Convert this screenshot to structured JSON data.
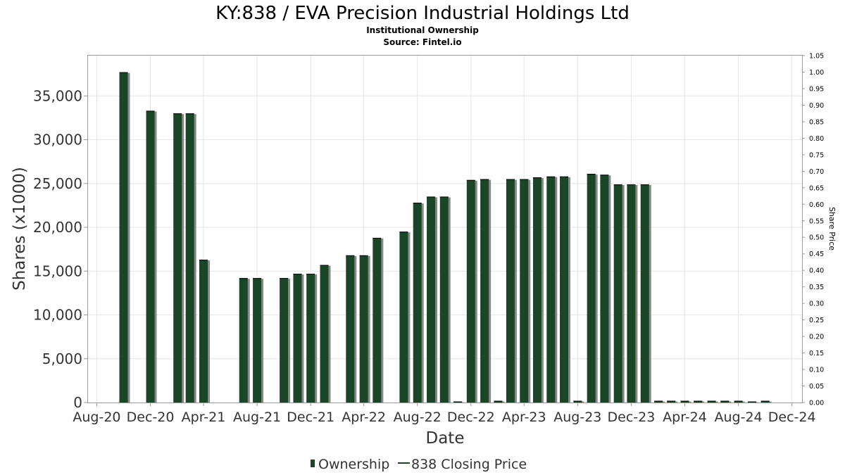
{
  "chart_data": {
    "type": "bar",
    "title": "KY:838 / EVA Precision Industrial Holdings Ltd",
    "subtitle_lines": [
      "Institutional Ownership",
      "Source: Fintel.io"
    ],
    "xlabel": "Date",
    "ylabel": "Shares (x1000)",
    "y2label": "Share Price",
    "ylim": [
      0,
      39600
    ],
    "y2lim": [
      0,
      1.05
    ],
    "yticks": [
      0,
      5000,
      10000,
      15000,
      20000,
      25000,
      30000,
      35000
    ],
    "ytick_labels": [
      "0",
      "5,000",
      "10,000",
      "15,000",
      "20,000",
      "25,000",
      "30,000",
      "35,000"
    ],
    "y2ticks": [
      0.0,
      0.05,
      0.1,
      0.15,
      0.2,
      0.25,
      0.3,
      0.35,
      0.4,
      0.45,
      0.5,
      0.55,
      0.6,
      0.65,
      0.7,
      0.75,
      0.8,
      0.85,
      0.9,
      0.95,
      1.0,
      1.05
    ],
    "y2tick_labels": [
      "0.00",
      "0.05",
      "0.10",
      "0.15",
      "0.20",
      "0.25",
      "0.30",
      "0.35",
      "0.40",
      "0.45",
      "0.50",
      "0.55",
      "0.60",
      "0.65",
      "0.70",
      "0.75",
      "0.80",
      "0.85",
      "0.90",
      "0.95",
      "1.00",
      "1.05"
    ],
    "xlim": [
      "2020-07-12",
      "2024-12-24"
    ],
    "xticks": [
      "2020-08-01",
      "2020-12-01",
      "2021-04-01",
      "2021-08-01",
      "2021-12-01",
      "2022-04-01",
      "2022-08-01",
      "2022-12-01",
      "2023-04-01",
      "2023-08-01",
      "2023-12-01",
      "2024-04-01",
      "2024-08-01",
      "2024-12-01"
    ],
    "xtick_labels": [
      "Aug-20",
      "Dec-20",
      "Apr-21",
      "Aug-21",
      "Dec-21",
      "Apr-22",
      "Aug-22",
      "Dec-22",
      "Apr-23",
      "Aug-23",
      "Dec-23",
      "Apr-24",
      "Aug-24",
      "Dec-24"
    ],
    "grid": true,
    "legend_position": "bottom",
    "series": [
      {
        "name": "Ownership",
        "kind": "bar",
        "color": "#1b4527",
        "shadow_color": "#888888",
        "x": [
          "2020-10-01",
          "2020-12-01",
          "2021-02-01",
          "2021-03-01",
          "2021-04-01",
          "2021-07-01",
          "2021-08-01",
          "2021-10-01",
          "2021-11-01",
          "2021-12-01",
          "2022-01-01",
          "2022-03-01",
          "2022-04-01",
          "2022-05-01",
          "2022-07-01",
          "2022-08-01",
          "2022-09-01",
          "2022-10-01",
          "2022-11-01",
          "2022-12-01",
          "2023-01-01",
          "2023-02-01",
          "2023-03-01",
          "2023-04-01",
          "2023-05-01",
          "2023-06-01",
          "2023-07-01",
          "2023-08-01",
          "2023-09-01",
          "2023-10-01",
          "2023-11-01",
          "2023-12-01",
          "2024-01-01",
          "2024-02-01",
          "2024-03-01",
          "2024-04-01",
          "2024-05-01",
          "2024-06-01",
          "2024-07-01",
          "2024-08-01",
          "2024-09-01",
          "2024-10-01"
        ],
        "values": [
          37700,
          33300,
          33000,
          33000,
          16300,
          14200,
          14200,
          14200,
          14700,
          14700,
          15700,
          16800,
          16800,
          18800,
          19500,
          22800,
          23500,
          23500,
          100,
          25400,
          25500,
          200,
          25500,
          25500,
          25700,
          25800,
          25800,
          200,
          26100,
          26000,
          24900,
          24900,
          24900,
          200,
          200,
          200,
          200,
          200,
          200,
          200,
          100,
          200
        ]
      },
      {
        "name": "838 Closing Price",
        "kind": "line",
        "color": "#1b4527",
        "values": []
      }
    ]
  }
}
